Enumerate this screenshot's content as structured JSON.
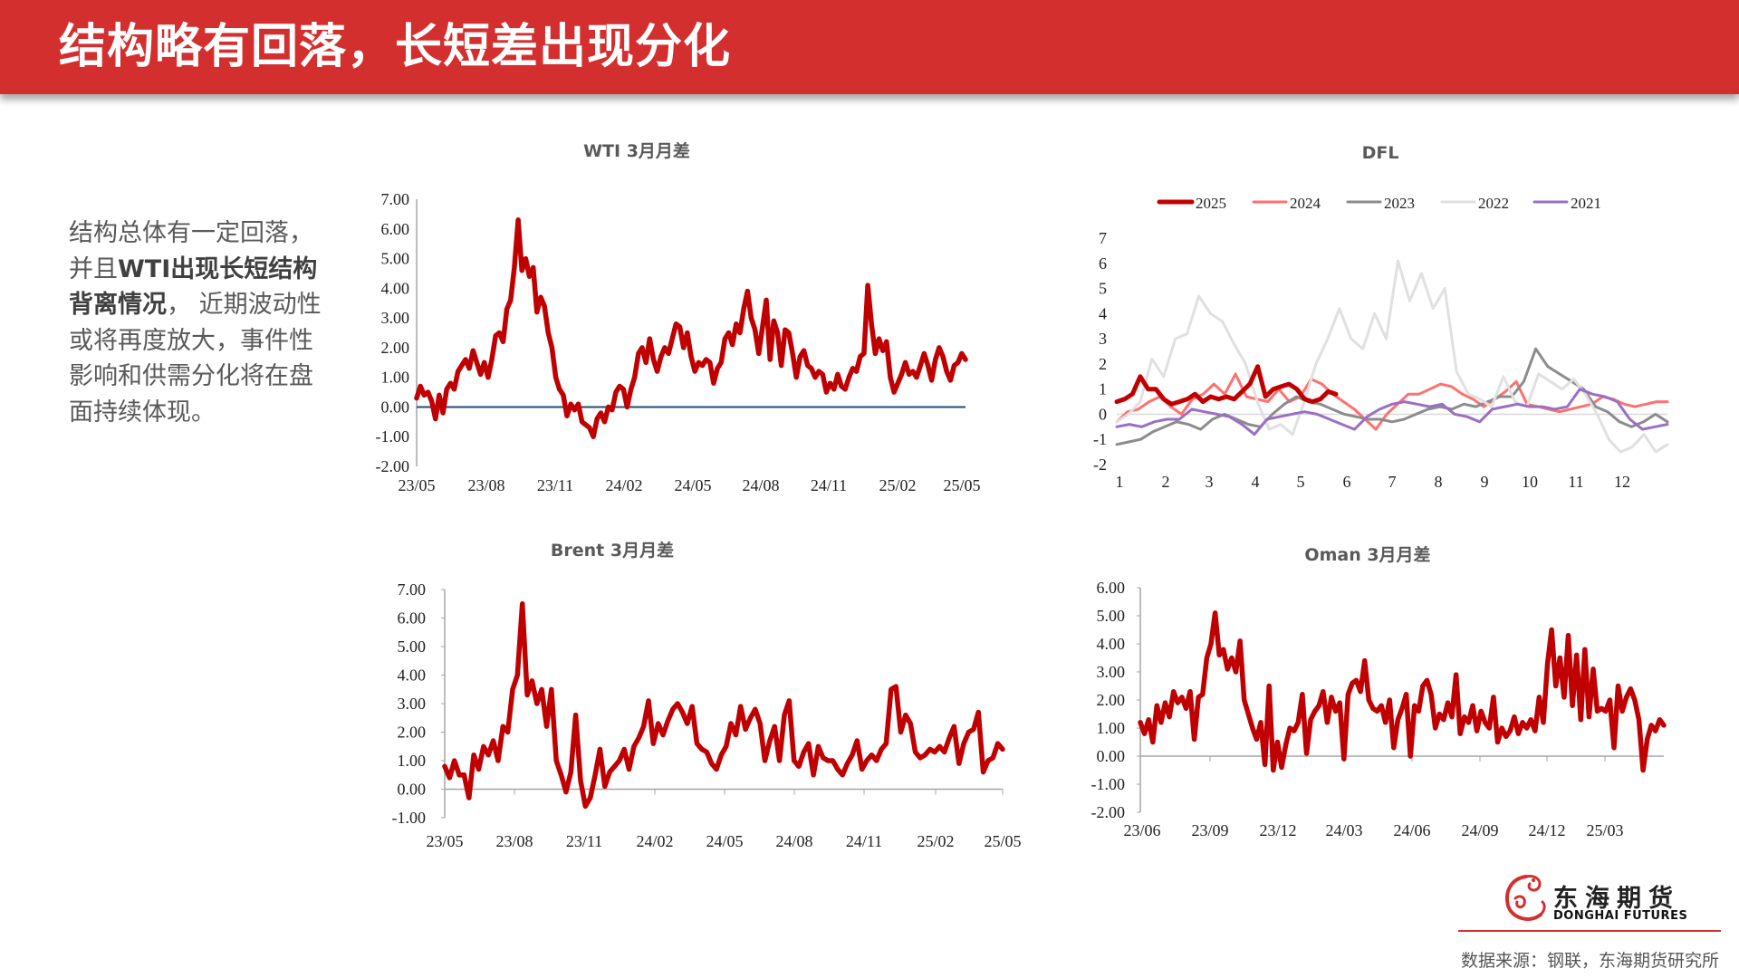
{
  "header": {
    "title": "结构略有回落，长短差出现分化"
  },
  "summary": {
    "seg1": "结构总体有一定回落，",
    "seg2": "并且",
    "seg3_bold": "WTI出现长短结构背离情况",
    "seg4": "， 近期波动性或将再度放大，事件性影响和供需分化将在盘面持续体现。"
  },
  "colors": {
    "brand": "#D32F2F",
    "series_main": "#C00000",
    "zero_line_wti": "#1F4E79",
    "axis": "#A6A6A6"
  },
  "chart_data": [
    {
      "id": "wti",
      "type": "line",
      "title": "WTI 3月月差",
      "xlabel": "",
      "ylabel": "",
      "ylim": [
        -2,
        7
      ],
      "yticks": [
        "7.00",
        "6.00",
        "5.00",
        "4.00",
        "3.00",
        "2.00",
        "1.00",
        "0.00",
        "-1.00",
        "-2.00"
      ],
      "categories": [
        "23/05",
        "23/08",
        "23/11",
        "24/02",
        "24/05",
        "24/08",
        "24/11",
        "25/02",
        "25/05"
      ],
      "grid": false,
      "legend": "none",
      "series": [
        {
          "name": "WTI 3月月差",
          "color": "#C00000",
          "values": [
            0.3,
            0.7,
            0.4,
            0.5,
            0.2,
            -0.4,
            0.4,
            -0.2,
            0.6,
            0.8,
            0.6,
            1.2,
            1.4,
            1.6,
            1.3,
            1.9,
            1.5,
            1.1,
            1.5,
            1.0,
            1.6,
            2.4,
            2.5,
            2.2,
            3.3,
            3.6,
            4.7,
            6.3,
            4.6,
            5.0,
            4.4,
            4.7,
            3.2,
            3.7,
            3.4,
            2.5,
            2.0,
            1.0,
            0.6,
            0.4,
            -0.3,
            0.1,
            -0.1,
            0.1,
            -0.5,
            -0.6,
            -0.7,
            -1.0,
            -0.4,
            -0.2,
            -0.5,
            0.0,
            -0.1,
            0.5,
            0.7,
            0.6,
            0.0,
            0.6,
            1.0,
            1.8,
            2.0,
            1.5,
            2.3,
            1.6,
            1.2,
            1.7,
            2.0,
            1.8,
            2.3,
            2.8,
            2.7,
            2.0,
            2.5,
            1.7,
            1.2,
            1.5,
            1.4,
            1.6,
            1.5,
            0.8,
            1.3,
            1.5,
            2.3,
            2.5,
            2.1,
            2.8,
            2.5,
            3.3,
            3.9,
            3.0,
            2.6,
            1.8,
            2.7,
            3.6,
            1.6,
            2.9,
            2.5,
            1.4,
            2.6,
            2.5,
            1.8,
            1.0,
            1.7,
            1.9,
            1.4,
            1.3,
            1.0,
            1.2,
            1.1,
            0.5,
            0.8,
            0.6,
            1.1,
            0.7,
            0.6,
            1.0,
            1.3,
            1.2,
            1.7,
            1.8,
            4.1,
            2.8,
            1.8,
            2.3,
            1.9,
            2.2,
            1.0,
            0.5,
            0.8,
            1.1,
            1.5,
            1.1,
            1.2,
            1.0,
            1.4,
            1.8,
            1.4,
            0.9,
            1.6,
            2.0,
            1.7,
            1.2,
            0.9,
            1.4,
            1.5,
            1.8,
            1.6
          ]
        }
      ]
    },
    {
      "id": "dfl",
      "type": "line",
      "title": "DFL",
      "xlabel": "",
      "ylabel": "",
      "ylim": [
        -2,
        7
      ],
      "yticks": [
        "7",
        "6",
        "5",
        "4",
        "3",
        "2",
        "1",
        "0",
        "-1",
        "-2"
      ],
      "categories": [
        "1",
        "2",
        "3",
        "4",
        "5",
        "6",
        "7",
        "8",
        "9",
        "10",
        "11",
        "12"
      ],
      "grid": false,
      "legend": "top",
      "series": [
        {
          "name": "2025",
          "color": "#C00000",
          "width": 5,
          "values": [
            0.5,
            0.6,
            0.8,
            1.5,
            1.0,
            1.0,
            0.6,
            0.4,
            0.5,
            0.6,
            0.8,
            0.5,
            0.7,
            0.6,
            0.7,
            0.6,
            0.9,
            1.2,
            1.9,
            0.7,
            1.0,
            1.1,
            1.2,
            1.0,
            0.6,
            0.5,
            0.6,
            0.9,
            0.8
          ]
        },
        {
          "name": "2024",
          "color": "#FF7070",
          "width": 3,
          "values": [
            -0.3,
            0.1,
            0.2,
            0.5,
            0.7,
            0.3,
            0.0,
            0.6,
            0.8,
            1.2,
            0.8,
            1.6,
            0.7,
            0.6,
            0.5,
            1.0,
            0.5,
            0.7,
            1.4,
            1.2,
            0.8,
            0.5,
            0.2,
            -0.2,
            -0.6,
            0.0,
            0.4,
            0.8,
            0.8,
            1.0,
            1.2,
            1.1,
            0.8,
            0.6,
            0.3,
            0.6,
            0.9,
            1.3,
            0.4,
            0.3,
            0.2,
            0.1,
            0.2,
            0.3,
            0.4,
            0.7,
            0.6,
            0.4,
            0.3,
            0.4,
            0.5,
            0.5
          ]
        },
        {
          "name": "2023",
          "color": "#8C8C8C",
          "width": 3,
          "values": [
            -1.2,
            -1.1,
            -1.0,
            -0.7,
            -0.5,
            -0.3,
            -0.4,
            -0.6,
            -0.2,
            0.0,
            -0.2,
            -0.4,
            -0.5,
            0.0,
            0.4,
            0.7,
            0.5,
            0.4,
            0.2,
            0.0,
            -0.1,
            -0.2,
            -0.2,
            -0.3,
            -0.2,
            0.0,
            0.2,
            0.3,
            0.2,
            0.4,
            0.3,
            0.5,
            0.7,
            0.7,
            1.3,
            2.6,
            1.9,
            1.6,
            1.3,
            1.0,
            0.3,
            0.1,
            -0.3,
            -0.5,
            -0.3,
            0.0,
            -0.3
          ]
        },
        {
          "name": "2022",
          "color": "#E0E0E0",
          "width": 3,
          "values": [
            -0.3,
            0.0,
            0.5,
            2.2,
            1.5,
            3.0,
            3.2,
            4.7,
            4.0,
            3.7,
            2.8,
            2.0,
            0.5,
            -0.6,
            -0.4,
            -0.8,
            0.5,
            2.0,
            3.0,
            4.2,
            3.0,
            2.6,
            4.0,
            3.0,
            6.1,
            4.5,
            5.6,
            4.2,
            5.0,
            1.7,
            0.8,
            0.6,
            0.3,
            1.5,
            0.5,
            0.3,
            1.6,
            1.3,
            1.0,
            1.4,
            0.8,
            0.0,
            -1.0,
            -1.5,
            -1.3,
            -0.8,
            -1.5,
            -1.2
          ]
        },
        {
          "name": "2021",
          "color": "#9B6FC4",
          "width": 3,
          "values": [
            -0.5,
            -0.4,
            -0.5,
            -0.3,
            -0.2,
            -0.2,
            0.2,
            0.1,
            0.0,
            -0.1,
            -0.4,
            -0.8,
            -0.2,
            -0.1,
            0.0,
            0.1,
            0.0,
            -0.2,
            -0.4,
            -0.6,
            -0.1,
            0.2,
            0.4,
            0.5,
            0.4,
            0.3,
            0.4,
            0.0,
            -0.1,
            -0.3,
            0.2,
            0.3,
            0.4,
            0.3,
            0.3,
            0.2,
            0.3,
            1.0,
            0.8,
            0.7,
            0.5,
            -0.2,
            -0.6,
            -0.5,
            -0.4
          ]
        }
      ]
    },
    {
      "id": "brent",
      "type": "line",
      "title": "Brent 3月月差",
      "xlabel": "",
      "ylabel": "",
      "ylim": [
        -1,
        7
      ],
      "yticks": [
        "7.00",
        "6.00",
        "5.00",
        "4.00",
        "3.00",
        "2.00",
        "1.00",
        "0.00",
        "-1.00"
      ],
      "categories": [
        "23/05",
        "23/08",
        "23/11",
        "24/02",
        "24/05",
        "24/08",
        "24/11",
        "25/02",
        "25/05"
      ],
      "grid": false,
      "legend": "none",
      "series": [
        {
          "name": "Brent 3月月差",
          "color": "#C00000",
          "values": [
            0.8,
            0.4,
            1.0,
            0.5,
            0.5,
            -0.3,
            1.2,
            0.7,
            1.5,
            1.2,
            1.7,
            1.0,
            2.2,
            2.0,
            3.5,
            4.0,
            6.5,
            3.3,
            3.8,
            3.0,
            3.5,
            2.2,
            3.5,
            1.0,
            0.5,
            -0.1,
            0.6,
            2.6,
            0.3,
            -0.6,
            -0.3,
            0.5,
            1.4,
            0.1,
            0.6,
            0.8,
            1.0,
            1.4,
            0.7,
            1.5,
            1.8,
            2.2,
            3.1,
            1.6,
            2.3,
            1.9,
            2.4,
            2.8,
            3.0,
            2.7,
            2.3,
            2.9,
            1.6,
            1.4,
            1.3,
            0.9,
            0.7,
            1.2,
            1.5,
            2.3,
            1.9,
            2.9,
            2.1,
            2.5,
            2.8,
            2.3,
            1.0,
            1.7,
            2.2,
            1.0,
            2.6,
            3.1,
            1.0,
            0.8,
            1.3,
            1.6,
            0.5,
            1.5,
            1.1,
            1.0,
            1.0,
            0.7,
            0.5,
            0.9,
            1.2,
            1.7,
            0.7,
            1.0,
            1.2,
            1.0,
            1.4,
            1.6,
            3.5,
            3.6,
            2.0,
            2.6,
            2.3,
            1.3,
            1.1,
            1.2,
            1.4,
            1.3,
            1.5,
            1.3,
            1.8,
            2.2,
            0.9,
            1.6,
            2.0,
            2.1,
            2.7,
            0.6,
            1.0,
            1.1,
            1.6,
            1.4
          ]
        }
      ]
    },
    {
      "id": "oman",
      "type": "line",
      "title": "Oman 3月月差",
      "xlabel": "",
      "ylabel": "",
      "ylim": [
        -2,
        6
      ],
      "yticks": [
        "6.00",
        "5.00",
        "4.00",
        "3.00",
        "2.00",
        "1.00",
        "0.00",
        "-1.00",
        "-2.00"
      ],
      "categories": [
        "23/06",
        "23/09",
        "23/12",
        "24/03",
        "24/06",
        "24/09",
        "24/12",
        "25/03"
      ],
      "grid": false,
      "legend": "none",
      "series": [
        {
          "name": "Oman 3月月差",
          "color": "#C00000",
          "values": [
            1.2,
            0.8,
            1.3,
            0.5,
            1.8,
            1.2,
            1.9,
            1.4,
            2.3,
            1.9,
            2.1,
            1.7,
            2.3,
            0.6,
            2.1,
            2.2,
            3.5,
            4.0,
            5.1,
            3.6,
            3.8,
            3.1,
            3.5,
            3.0,
            4.1,
            2.0,
            1.5,
            1.0,
            0.6,
            1.2,
            -0.3,
            2.5,
            -0.5,
            0.5,
            -0.4,
            0.4,
            1.0,
            0.9,
            1.2,
            2.2,
            0.1,
            1.3,
            1.6,
            1.8,
            2.3,
            1.2,
            2.1,
            1.6,
            1.9,
            -0.1,
            2.2,
            2.6,
            2.7,
            2.3,
            3.4,
            2.0,
            1.7,
            1.6,
            1.8,
            1.2,
            2.0,
            0.3,
            1.3,
            1.7,
            2.2,
            0.0,
            1.8,
            1.6,
            2.5,
            2.7,
            2.2,
            1.0,
            1.5,
            1.3,
            1.9,
            1.4,
            2.9,
            0.8,
            1.4,
            1.2,
            1.8,
            0.9,
            1.6,
            1.2,
            1.0,
            2.1,
            0.5,
            1.0,
            0.7,
            0.9,
            1.4,
            0.8,
            1.2,
            1.0,
            1.3,
            0.9,
            2.1,
            1.2,
            3.3,
            4.5,
            2.5,
            3.5,
            2.1,
            4.3,
            1.8,
            3.6,
            1.3,
            3.8,
            1.4,
            3.1,
            1.6,
            1.7,
            1.6,
            2.0,
            0.3,
            2.5,
            1.6,
            2.1,
            2.4,
            2.0,
            1.3,
            -0.5,
            0.6,
            1.1,
            0.9,
            1.3,
            1.1
          ]
        }
      ]
    }
  ],
  "footer": {
    "logo_cn": "东海期货",
    "logo_en": "DONGHAI FUTURES",
    "source": "数据来源：钢联，东海期货研究所"
  }
}
